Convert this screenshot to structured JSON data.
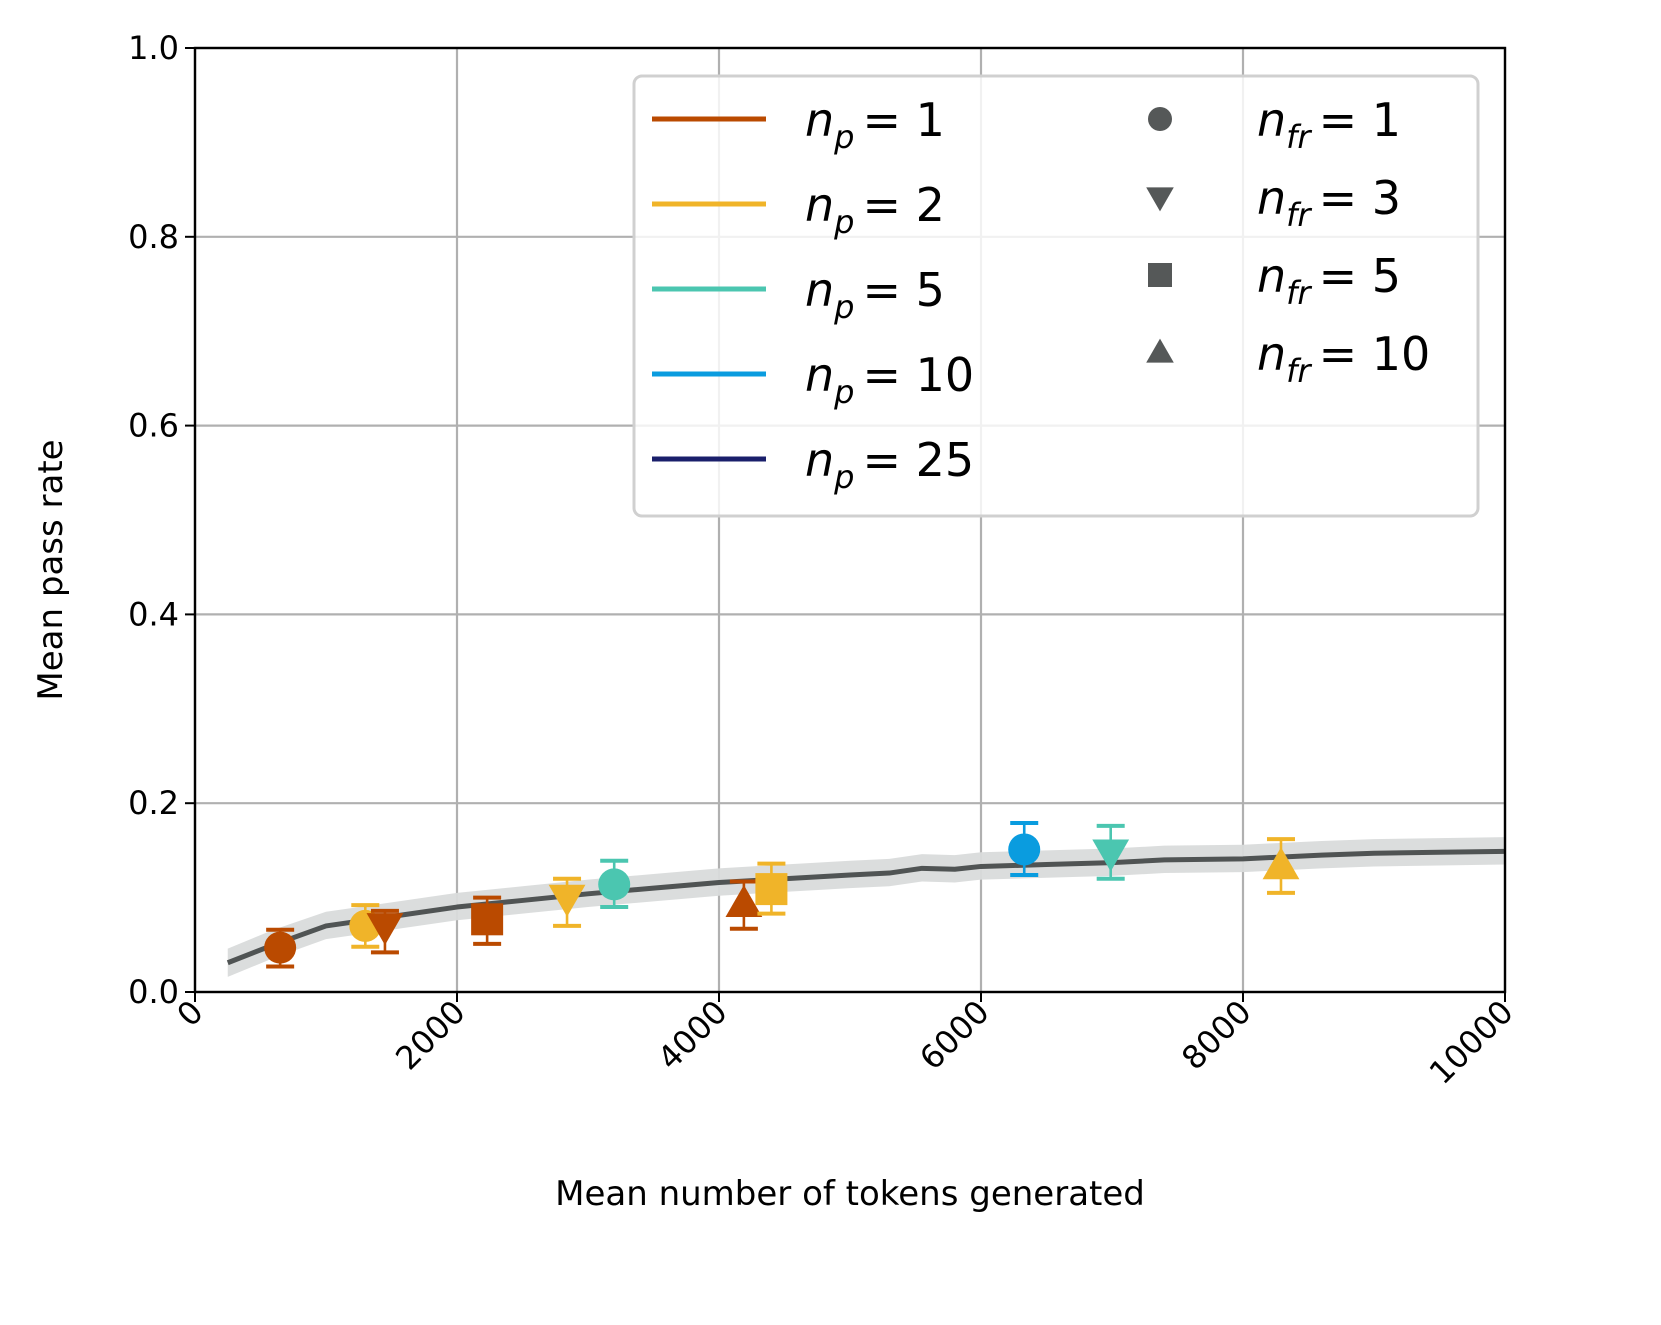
{
  "chart_data": {
    "type": "scatter",
    "title": "",
    "xlabel": "Mean number of tokens generated",
    "ylabel": "Mean pass rate",
    "xlim": [
      0,
      10000
    ],
    "ylim": [
      0,
      1.0
    ],
    "xticks": [
      0,
      2000,
      4000,
      6000,
      8000,
      10000
    ],
    "xtick_labels": [
      "0",
      "2000",
      "4000",
      "6000",
      "8000",
      "10000"
    ],
    "yticks": [
      0.0,
      0.2,
      0.4,
      0.6,
      0.8,
      1.0
    ],
    "ytick_labels": [
      "0.0",
      "0.2",
      "0.4",
      "0.6",
      "0.8",
      "1.0"
    ],
    "grid": true,
    "legend_position": "top-right",
    "color_legend": [
      {
        "label_base": "n",
        "label_sub": "p",
        "label_value": "= 1",
        "color": "#BA4A00"
      },
      {
        "label_base": "n",
        "label_sub": "p",
        "label_value": "= 2",
        "color": "#F0B429"
      },
      {
        "label_base": "n",
        "label_sub": "p",
        "label_value": "= 5",
        "color": "#4BC6B0"
      },
      {
        "label_base": "n",
        "label_sub": "p",
        "label_value": "= 10",
        "color": "#0A9CDF"
      },
      {
        "label_base": "n",
        "label_sub": "p",
        "label_value": "= 25",
        "color": "#1A1F6B"
      }
    ],
    "marker_legend": [
      {
        "label_base": "n",
        "label_sub": "fr",
        "label_value": "= 1",
        "marker": "circle"
      },
      {
        "label_base": "n",
        "label_sub": "fr",
        "label_value": "= 3",
        "marker": "triangle-down"
      },
      {
        "label_base": "n",
        "label_sub": "fr",
        "label_value": "= 5",
        "marker": "square"
      },
      {
        "label_base": "n",
        "label_sub": "fr",
        "label_value": "= 10",
        "marker": "triangle-up"
      }
    ],
    "marker_legend_color": "#555858",
    "baseline": {
      "color": "#505454",
      "band_color": "#D9DBDB",
      "x": [
        250,
        600,
        1000,
        1500,
        2000,
        2500,
        3000,
        3500,
        4000,
        4500,
        5000,
        5300,
        5550,
        5800,
        6000,
        6500,
        7000,
        7400,
        8000,
        8300,
        8600,
        9000,
        9500,
        10000
      ],
      "y": [
        0.031,
        0.05,
        0.07,
        0.08,
        0.09,
        0.097,
        0.104,
        0.11,
        0.116,
        0.12,
        0.124,
        0.126,
        0.131,
        0.13,
        0.133,
        0.135,
        0.137,
        0.14,
        0.141,
        0.143,
        0.145,
        0.147,
        0.148,
        0.149
      ],
      "band_lower": [
        0.016,
        0.036,
        0.056,
        0.066,
        0.076,
        0.083,
        0.09,
        0.096,
        0.102,
        0.106,
        0.11,
        0.112,
        0.117,
        0.116,
        0.119,
        0.121,
        0.123,
        0.126,
        0.127,
        0.129,
        0.131,
        0.133,
        0.134,
        0.135
      ],
      "band_upper": [
        0.046,
        0.066,
        0.085,
        0.095,
        0.105,
        0.112,
        0.119,
        0.125,
        0.131,
        0.135,
        0.139,
        0.141,
        0.146,
        0.145,
        0.148,
        0.15,
        0.152,
        0.155,
        0.156,
        0.158,
        0.16,
        0.162,
        0.163,
        0.164
      ]
    },
    "points": [
      {
        "np": 1,
        "nfr": 1,
        "x": 650,
        "y": 0.047,
        "err_low": 0.027,
        "err_high": 0.066
      },
      {
        "np": 2,
        "nfr": 1,
        "x": 1300,
        "y": 0.07,
        "err_low": 0.048,
        "err_high": 0.092
      },
      {
        "np": 1,
        "nfr": 3,
        "x": 1450,
        "y": 0.07,
        "err_low": 0.042,
        "err_high": 0.086
      },
      {
        "np": 1,
        "nfr": 5,
        "x": 2230,
        "y": 0.077,
        "err_low": 0.051,
        "err_high": 0.1
      },
      {
        "np": 2,
        "nfr": 3,
        "x": 2840,
        "y": 0.1,
        "err_low": 0.07,
        "err_high": 0.12
      },
      {
        "np": 5,
        "nfr": 1,
        "x": 3200,
        "y": 0.114,
        "err_low": 0.09,
        "err_high": 0.139
      },
      {
        "np": 1,
        "nfr": 10,
        "x": 4190,
        "y": 0.093,
        "err_low": 0.067,
        "err_high": 0.117
      },
      {
        "np": 2,
        "nfr": 5,
        "x": 4400,
        "y": 0.109,
        "err_low": 0.083,
        "err_high": 0.136
      },
      {
        "np": 10,
        "nfr": 1,
        "x": 6330,
        "y": 0.151,
        "err_low": 0.124,
        "err_high": 0.179
      },
      {
        "np": 5,
        "nfr": 3,
        "x": 6990,
        "y": 0.148,
        "err_low": 0.12,
        "err_high": 0.176
      },
      {
        "np": 2,
        "nfr": 10,
        "x": 8290,
        "y": 0.133,
        "err_low": 0.105,
        "err_high": 0.162
      }
    ]
  }
}
